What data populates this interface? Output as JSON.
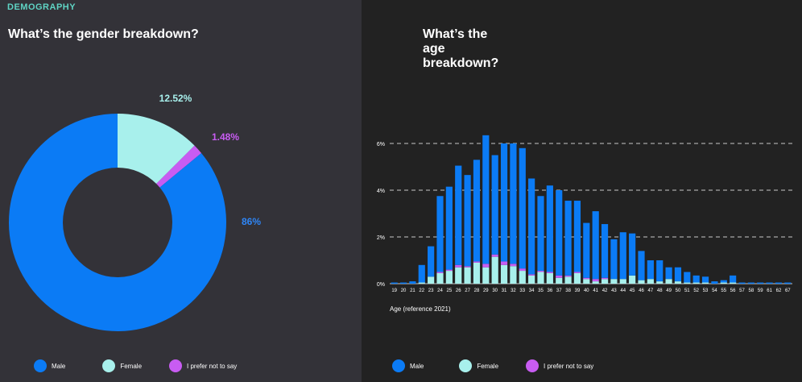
{
  "section_tag": "DEMOGRAPHY",
  "colors": {
    "male": "#0b7bf5",
    "female": "#a8f0ec",
    "other": "#c85cf2",
    "label_male": "#2f86f6",
    "label_female": "#a8f0ec",
    "label_other": "#c85cf2"
  },
  "legend": [
    {
      "key": "male",
      "label": "Male",
      "color": "#0b7bf5"
    },
    {
      "key": "female",
      "label": "Female",
      "color": "#a8f0ec"
    },
    {
      "key": "other",
      "label": "I prefer not to say",
      "color": "#c85cf2"
    }
  ],
  "chart_data": [
    {
      "type": "pie",
      "title": "What’s the gender breakdown?",
      "labels": [
        "Male",
        "Female",
        "I prefer not to say"
      ],
      "values": [
        86,
        12.52,
        1.48
      ],
      "value_labels": [
        "86%",
        "12.52%",
        "1.48%"
      ],
      "donut": true
    },
    {
      "type": "bar",
      "stacked": true,
      "title": "What’s the age breakdown?",
      "xlabel": "Age (reference 2021)",
      "ylabel": "",
      "categories": [
        "19",
        "20",
        "21",
        "22",
        "23",
        "24",
        "25",
        "26",
        "27",
        "28",
        "29",
        "30",
        "31",
        "32",
        "33",
        "34",
        "35",
        "36",
        "37",
        "38",
        "39",
        "40",
        "41",
        "42",
        "43",
        "44",
        "45",
        "46",
        "47",
        "48",
        "49",
        "50",
        "51",
        "52",
        "53",
        "54",
        "55",
        "56",
        "57",
        "58",
        "59",
        "61",
        "62",
        "67"
      ],
      "series": [
        {
          "name": "Female",
          "values": [
            0,
            0,
            0,
            0.05,
            0.3,
            0.45,
            0.55,
            0.7,
            0.7,
            0.9,
            0.7,
            1.15,
            0.8,
            0.75,
            0.55,
            0.35,
            0.5,
            0.45,
            0.25,
            0.3,
            0.45,
            0.2,
            0.1,
            0.2,
            0.2,
            0.2,
            0.35,
            0.15,
            0.2,
            0.1,
            0.2,
            0.1,
            0.05,
            0.05,
            0.05,
            0,
            0.05,
            0.05,
            0,
            0,
            0,
            0,
            0,
            0
          ]
        },
        {
          "name": "I prefer not to say",
          "values": [
            0,
            0,
            0,
            0,
            0,
            0.05,
            0.05,
            0.1,
            0.05,
            0.05,
            0.15,
            0.1,
            0.15,
            0.1,
            0.1,
            0.05,
            0.05,
            0.05,
            0.1,
            0.05,
            0.05,
            0.05,
            0.1,
            0.05,
            0,
            0,
            0,
            0,
            0,
            0,
            0,
            0,
            0,
            0,
            0,
            0,
            0,
            0,
            0,
            0,
            0,
            0,
            0,
            0
          ]
        },
        {
          "name": "Male",
          "values": [
            0.05,
            0.05,
            0.1,
            0.75,
            1.3,
            3.25,
            3.55,
            4.25,
            3.9,
            4.35,
            5.5,
            4.25,
            5.05,
            5.15,
            5.15,
            4.1,
            3.2,
            3.7,
            3.65,
            3.2,
            3.05,
            2.35,
            2.9,
            2.3,
            1.7,
            2.0,
            1.8,
            1.25,
            0.8,
            0.9,
            0.5,
            0.6,
            0.45,
            0.3,
            0.25,
            0.1,
            0.1,
            0.3,
            0.05,
            0.05,
            0.05,
            0.05,
            0.05,
            0.05
          ]
        }
      ],
      "yticks": [
        "0%",
        "2%",
        "4%",
        "6%"
      ],
      "ylim": [
        0,
        6.8
      ],
      "grid": true
    }
  ]
}
